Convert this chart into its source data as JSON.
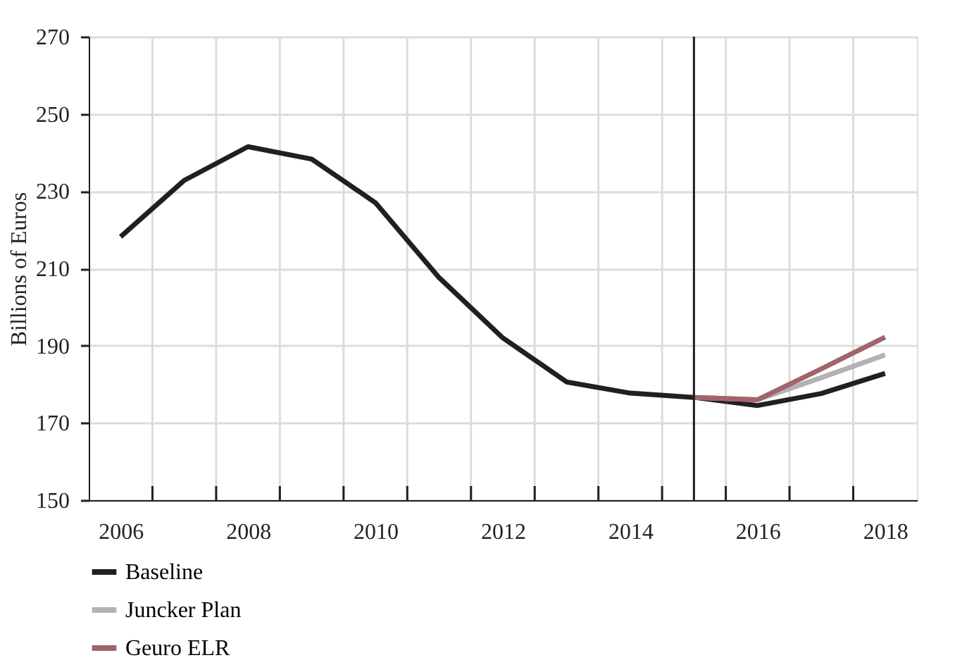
{
  "chart_data": {
    "type": "line",
    "ylabel": "Billions of Euros",
    "x": [
      2006,
      2007,
      2008,
      2009,
      2010,
      2011,
      2012,
      2013,
      2014,
      2015,
      2016,
      2017,
      2018
    ],
    "series": [
      {
        "name": "Baseline",
        "color": "#231f20",
        "values": [
          218.2,
          232.8,
          241.5,
          238.3,
          227,
          207.6,
          192,
          180.6,
          177.7,
          176.6,
          174.5,
          177.6,
          182.8
        ]
      },
      {
        "name": "Juncker Plan",
        "color": "#b2b2b4",
        "x": [
          2015,
          2016,
          2017,
          2018
        ],
        "values": [
          176.6,
          176,
          181.7,
          187.6
        ]
      },
      {
        "name": "Geuro ELR",
        "color": "#a3636b",
        "x": [
          2015,
          2016,
          2017,
          2018
        ],
        "values": [
          176.6,
          176,
          184,
          192.2
        ]
      }
    ],
    "xlim": [
      2005.5,
      2018.5
    ],
    "xticks": [
      {
        "value": 2006,
        "label": "2006"
      },
      {
        "value": 2006.5,
        "label": null
      },
      {
        "value": 2007.5,
        "label": null
      },
      {
        "value": 2008,
        "label": "2008"
      },
      {
        "value": 2008.5,
        "label": null
      },
      {
        "value": 2009.5,
        "label": null
      },
      {
        "value": 2010,
        "label": "2010"
      },
      {
        "value": 2010.5,
        "label": null
      },
      {
        "value": 2011.5,
        "label": null
      },
      {
        "value": 2012,
        "label": "2012"
      },
      {
        "value": 2012.5,
        "label": null
      },
      {
        "value": 2013.5,
        "label": null
      },
      {
        "value": 2014,
        "label": "2014"
      },
      {
        "value": 2014.5,
        "label": null
      },
      {
        "value": 2015.5,
        "label": null
      },
      {
        "value": 2016,
        "label": "2016"
      },
      {
        "value": 2016.5,
        "label": null
      },
      {
        "value": 2017.5,
        "label": null
      },
      {
        "value": 2018,
        "label": "2018"
      }
    ],
    "ylim": [
      150,
      270
    ],
    "yticks": [
      150,
      170,
      190,
      210,
      230,
      250,
      270
    ],
    "ref_lines": [
      {
        "axis": "x",
        "value": 2015,
        "color": "#231f20"
      }
    ],
    "grid": true,
    "legend": "bottom left",
    "marker": "none",
    "line_style": "solid"
  }
}
